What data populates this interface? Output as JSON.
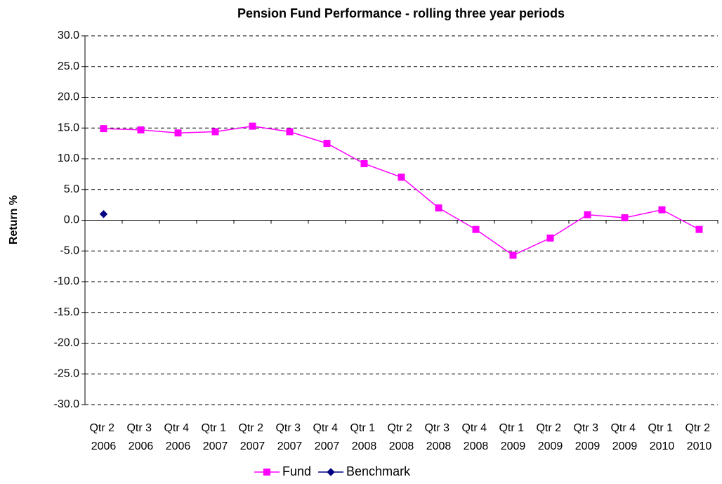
{
  "chart_data": {
    "type": "line",
    "title": "Pension Fund Performance - rolling three year periods",
    "y_label": "Return %",
    "categories": [
      "Qtr 2 2006",
      "Qtr 3 2006",
      "Qtr 4 2006",
      "Qtr 1 2007",
      "Qtr 2 2007",
      "Qtr 3 2007",
      "Qtr 4 2007",
      "Qtr 1 2008",
      "Qtr 2 2008",
      "Qtr 3 2008",
      "Qtr 4 2008",
      "Qtr 1 2009",
      "Qtr 2 2009",
      "Qtr 3 2009",
      "Qtr 4 2009",
      "Qtr 1 2010",
      "Qtr 2 2010"
    ],
    "series": [
      {
        "name": "Fund",
        "color": "#ff00ff",
        "marker": "square",
        "values": [
          14.9,
          14.7,
          14.2,
          14.4,
          15.3,
          14.4,
          12.5,
          9.2,
          7.0,
          2.0,
          -1.5,
          -5.7,
          -2.9,
          0.9,
          0.4,
          1.7,
          -1.5
        ]
      },
      {
        "name": "Benchmark",
        "color": "#000080",
        "marker": "diamond",
        "values": [
          1.0,
          null,
          null,
          null,
          null,
          null,
          null,
          null,
          null,
          null,
          null,
          null,
          null,
          null,
          null,
          null,
          null
        ]
      }
    ],
    "ylim": [
      -30,
      30
    ],
    "yticks": [
      {
        "value": -30,
        "label": "-30.0"
      },
      {
        "value": -25,
        "label": "-25.0"
      },
      {
        "value": -20,
        "label": "-20.0"
      },
      {
        "value": -15,
        "label": "-15.0"
      },
      {
        "value": -10,
        "label": "-10.0"
      },
      {
        "value": -5,
        "label": "-5.0"
      },
      {
        "value": 0,
        "label": "0.0"
      },
      {
        "value": 5,
        "label": "5.0"
      },
      {
        "value": 10,
        "label": "10.0"
      },
      {
        "value": 15,
        "label": "15.0"
      },
      {
        "value": 20,
        "label": "20.0"
      },
      {
        "value": 25,
        "label": "25.0"
      },
      {
        "value": 30,
        "label": "30.0"
      }
    ],
    "grid": true,
    "legend": "bottom"
  }
}
